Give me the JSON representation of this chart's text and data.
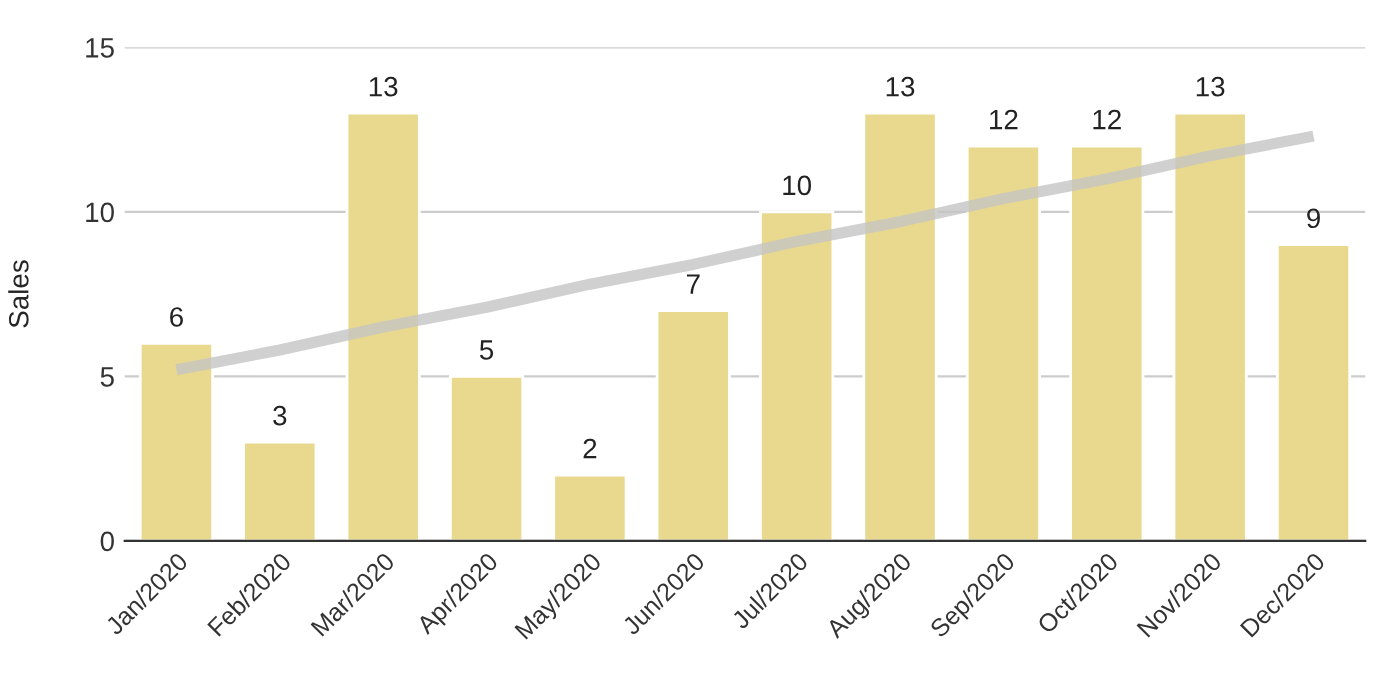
{
  "chart_data": {
    "type": "bar",
    "ylabel": "Sales",
    "categories": [
      "Jan/2020",
      "Feb/2020",
      "Mar/2020",
      "Apr/2020",
      "May/2020",
      "Jun/2020",
      "Jul/2020",
      "Aug/2020",
      "Sep/2020",
      "Oct/2020",
      "Nov/2020",
      "Dec/2020"
    ],
    "series": [
      {
        "color": "#e8d98e",
        "values": [
          6,
          3,
          13,
          5,
          2,
          7,
          10,
          13,
          12,
          12,
          13,
          9
        ],
        "value_labels": [
          "6",
          "3",
          "13",
          "5",
          "2",
          "7",
          "10",
          "13",
          "12",
          "12",
          "13",
          "9"
        ]
      },
      {
        "type": "line",
        "color": "#c4c4c4",
        "values": [
          5.2,
          5.8,
          6.5,
          7.1,
          7.8,
          8.4,
          9.1,
          9.7,
          10.4,
          11.0,
          11.7,
          12.3
        ]
      }
    ],
    "ylim": [
      0,
      15
    ],
    "yticks": [
      0,
      5,
      10,
      15
    ],
    "grid": "y",
    "legend": false
  }
}
